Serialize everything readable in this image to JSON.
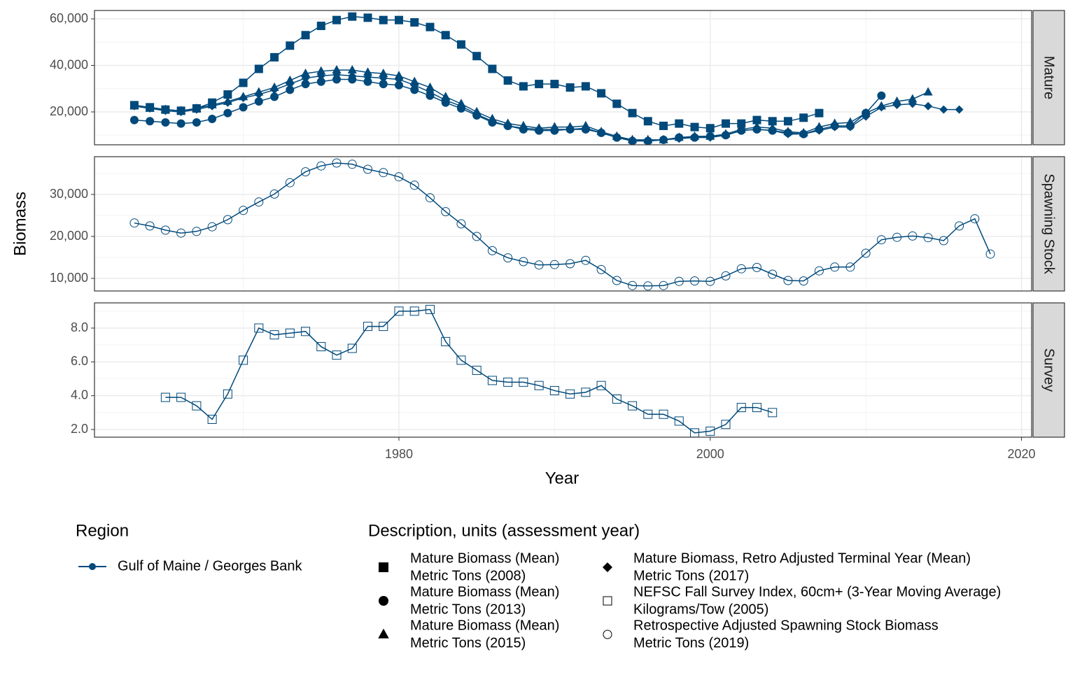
{
  "chart_data": {
    "type": "line",
    "x_label": "Year",
    "y_label": "Biomass",
    "color": "#00497b",
    "grid": true,
    "xlim": [
      1960.44,
      2020.65
    ],
    "xticks": [
      1980,
      2000,
      2020
    ],
    "region_title": "Region",
    "region": "Gulf of Maine / Georges Bank",
    "legend_title": "Description, units (assessment year)",
    "panels": [
      {
        "facet": "Mature",
        "ylim": [
          5865,
          63609
        ],
        "yticks": [
          {
            "value": 20000,
            "label": "20,000"
          },
          {
            "value": 40000,
            "label": "40,000"
          },
          {
            "value": 60000,
            "label": "60,000"
          }
        ],
        "series": [
          {
            "name": "Mature Biomass (Mean)",
            "units": "Metric Tons (2008)",
            "shape": "square",
            "filled": true,
            "x": [
              1963,
              1964,
              1965,
              1966,
              1967,
              1968,
              1969,
              1970,
              1971,
              1972,
              1973,
              1974,
              1975,
              1976,
              1977,
              1978,
              1979,
              1980,
              1981,
              1982,
              1983,
              1984,
              1985,
              1986,
              1987,
              1988,
              1989,
              1990,
              1991,
              1992,
              1993,
              1994,
              1995,
              1996,
              1997,
              1998,
              1999,
              2000,
              2001,
              2002,
              2003,
              2004,
              2005,
              2006,
              2007
            ],
            "values": [
              22900,
              22000,
              21000,
              20500,
              21500,
              24000,
              27500,
              32500,
              38500,
              43500,
              48500,
              53000,
              57000,
              59500,
              61000,
              60500,
              59500,
              59500,
              58500,
              56500,
              53000,
              49000,
              44000,
              38500,
              33500,
              31000,
              32000,
              32000,
              30500,
              31000,
              28000,
              23500,
              19500,
              16000,
              14000,
              15000,
              13500,
              13000,
              15000,
              15000,
              16500,
              16000,
              16000,
              17500,
              19500
            ]
          },
          {
            "name": "Mature Biomass (Mean)",
            "units": "Metric Tons (2013)",
            "shape": "circle",
            "filled": true,
            "x": [
              1963,
              1964,
              1965,
              1966,
              1967,
              1968,
              1969,
              1970,
              1971,
              1972,
              1973,
              1974,
              1975,
              1976,
              1977,
              1978,
              1979,
              1980,
              1981,
              1982,
              1983,
              1984,
              1985,
              1986,
              1987,
              1988,
              1989,
              1990,
              1991,
              1992,
              1993,
              1994,
              1995,
              1996,
              1997,
              1998,
              1999,
              2000,
              2001,
              2002,
              2003,
              2004,
              2005,
              2006,
              2007,
              2008,
              2009,
              2010,
              2011
            ],
            "values": [
              16500,
              16000,
              15500,
              15000,
              15500,
              17000,
              19500,
              22000,
              24500,
              26500,
              29500,
              32000,
              33000,
              34000,
              34000,
              33000,
              32000,
              31500,
              29500,
              27000,
              24000,
              21500,
              18500,
              15500,
              14000,
              12500,
              12000,
              12000,
              12500,
              12500,
              11000,
              9000,
              7500,
              7500,
              8000,
              9000,
              9000,
              9500,
              10000,
              12000,
              12500,
              12000,
              11000,
              10500,
              12500,
              14000,
              14000,
              19500,
              27000
            ]
          },
          {
            "name": "Mature Biomass (Mean)",
            "units": "Metric Tons (2015)",
            "shape": "triangle",
            "filled": true,
            "x": [
              1963,
              1964,
              1965,
              1966,
              1967,
              1968,
              1969,
              1970,
              1971,
              1972,
              1973,
              1974,
              1975,
              1976,
              1977,
              1978,
              1979,
              1980,
              1981,
              1982,
              1983,
              1984,
              1985,
              1986,
              1987,
              1988,
              1989,
              1990,
              1991,
              1992,
              1993,
              1994,
              1995,
              1996,
              1997,
              1998,
              1999,
              2000,
              2001,
              2002,
              2003,
              2004,
              2005,
              2006,
              2007,
              2008,
              2009,
              2010,
              2011,
              2012,
              2013,
              2014
            ],
            "values": [
              22500,
              21500,
              21000,
              20500,
              21500,
              23000,
              24500,
              26500,
              28500,
              30500,
              33500,
              36500,
              37500,
              38000,
              38000,
              37000,
              36500,
              35500,
              33000,
              30500,
              26500,
              23500,
              20000,
              17000,
              15000,
              14000,
              13000,
              13500,
              13500,
              14000,
              11500,
              9500,
              8000,
              8000,
              8000,
              9000,
              9500,
              9500,
              10500,
              12500,
              13500,
              13000,
              11500,
              11000,
              13500,
              15000,
              15500,
              19500,
              22500,
              24500,
              25500,
              28500
            ]
          },
          {
            "name": "Mature Biomass, Retro Adjusted Terminal Year (Mean)",
            "units": "Metric Tons (2017)",
            "shape": "diamond",
            "filled": true,
            "x": [
              1963,
              1964,
              1965,
              1966,
              1967,
              1968,
              1969,
              1970,
              1971,
              1972,
              1973,
              1974,
              1975,
              1976,
              1977,
              1978,
              1979,
              1980,
              1981,
              1982,
              1983,
              1984,
              1985,
              1986,
              1987,
              1988,
              1989,
              1990,
              1991,
              1992,
              1993,
              1994,
              1995,
              1996,
              1997,
              1998,
              1999,
              2000,
              2001,
              2002,
              2003,
              2004,
              2005,
              2006,
              2007,
              2008,
              2009,
              2010,
              2011,
              2012,
              2013,
              2014,
              2015,
              2016
            ],
            "values": [
              22500,
              21500,
              20500,
              20000,
              21000,
              22500,
              24000,
              26000,
              27500,
              29500,
              32000,
              34500,
              35500,
              36000,
              35500,
              35000,
              34500,
              34000,
              31500,
              28500,
              25000,
              22500,
              19000,
              16000,
              14000,
              13000,
              12500,
              12500,
              12500,
              13000,
              11000,
              9000,
              8000,
              7500,
              8000,
              8500,
              9000,
              9000,
              10000,
              12000,
              12500,
              12000,
              10500,
              10500,
              12000,
              13500,
              13500,
              18000,
              22000,
              23000,
              23500,
              22500,
              21000,
              21000
            ]
          }
        ]
      },
      {
        "facet": "Spawning Stock",
        "ylim": [
          7000,
          39000
        ],
        "yticks": [
          {
            "value": 10000,
            "label": "10,000"
          },
          {
            "value": 20000,
            "label": "20,000"
          },
          {
            "value": 30000,
            "label": "30,000"
          }
        ],
        "series": [
          {
            "name": "Retrospective Adjusted Spawning Stock Biomass",
            "units": "Metric Tons (2019)",
            "shape": "circle",
            "filled": false,
            "x": [
              1963,
              1964,
              1965,
              1966,
              1967,
              1968,
              1969,
              1970,
              1971,
              1972,
              1973,
              1974,
              1975,
              1976,
              1977,
              1978,
              1979,
              1980,
              1981,
              1982,
              1983,
              1984,
              1985,
              1986,
              1987,
              1988,
              1989,
              1990,
              1991,
              1992,
              1993,
              1994,
              1995,
              1996,
              1997,
              1998,
              1999,
              2000,
              2001,
              2002,
              2003,
              2004,
              2005,
              2006,
              2007,
              2008,
              2009,
              2010,
              2011,
              2012,
              2013,
              2014,
              2015,
              2016,
              2017,
              2018
            ],
            "values": [
              23200,
              22500,
              21500,
              20800,
              21200,
              22300,
              24000,
              26200,
              28200,
              30100,
              32800,
              35400,
              36800,
              37500,
              37200,
              36000,
              35200,
              34200,
              32200,
              29200,
              25900,
              23000,
              20000,
              16600,
              14900,
              14000,
              13200,
              13300,
              13500,
              14300,
              12100,
              9500,
              8300,
              8200,
              8300,
              9300,
              9400,
              9300,
              10600,
              12300,
              12600,
              11000,
              9500,
              9400,
              11800,
              12700,
              12700,
              16000,
              19200,
              19800,
              20100,
              19700,
              19000,
              22500,
              24200,
              15800
            ]
          }
        ]
      },
      {
        "facet": "Survey",
        "ylim": [
          1.545,
          9.49
        ],
        "yticks": [
          {
            "value": 2,
            "label": "2.0"
          },
          {
            "value": 4,
            "label": "4.0"
          },
          {
            "value": 6,
            "label": "6.0"
          },
          {
            "value": 8,
            "label": "8.0"
          }
        ],
        "series": [
          {
            "name": "NEFSC Fall Survey Index, 60cm+ (3-Year Moving Average)",
            "units": "Kilograms/Tow (2005)",
            "shape": "square",
            "filled": false,
            "x": [
              1965,
              1966,
              1967,
              1968,
              1969,
              1970,
              1971,
              1972,
              1973,
              1974,
              1975,
              1976,
              1977,
              1978,
              1979,
              1980,
              1981,
              1982,
              1983,
              1984,
              1985,
              1986,
              1987,
              1988,
              1989,
              1990,
              1991,
              1992,
              1993,
              1994,
              1995,
              1996,
              1997,
              1998,
              1999,
              2000,
              2001,
              2002,
              2003,
              2004
            ],
            "values": [
              3.9,
              3.9,
              3.4,
              2.6,
              4.1,
              6.1,
              8.0,
              7.6,
              7.7,
              7.8,
              6.9,
              6.4,
              6.8,
              8.1,
              8.1,
              9.0,
              9.0,
              9.1,
              7.2,
              6.1,
              5.5,
              4.9,
              4.8,
              4.8,
              4.6,
              4.3,
              4.1,
              4.2,
              4.6,
              3.8,
              3.4,
              2.9,
              2.9,
              2.5,
              1.8,
              1.9,
              2.3,
              3.3,
              3.3,
              3.0
            ]
          }
        ]
      }
    ]
  }
}
